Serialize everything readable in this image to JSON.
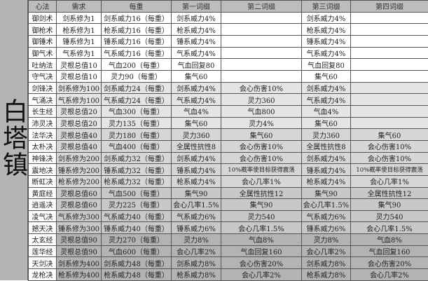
{
  "side_label": "白塔镇",
  "headers": [
    "心法",
    "需求",
    "每重",
    "第一词缀",
    "第二词缀",
    "第三词缀",
    "第四词缀"
  ],
  "rows": [
    [
      "御剑术",
      "剑系修为1",
      "剑系威力16（每重）",
      "剑系威力4%",
      "",
      "剑系威力4%",
      ""
    ],
    [
      "御枪术",
      "枪系修为1",
      "枪系威力16（每重）",
      "枪系威力4%",
      "",
      "枪系威力4%",
      ""
    ],
    [
      "御锤术",
      "锤系修为1",
      "锤系威力16（每重）",
      "锤系威力4%",
      "",
      "锤系威力4%",
      ""
    ],
    [
      "御气术",
      "气系修为1",
      "气系威力16（每重）",
      "气系威力4%",
      "",
      "气系威力4%",
      ""
    ],
    [
      "吐纳法",
      "灵根总值10",
      "气血200（每重）",
      "气血回复80",
      "",
      "气血回复80",
      ""
    ],
    [
      "守气决",
      "灵根总值10",
      "灵力90（每重）",
      "集气60",
      "",
      "集气60",
      ""
    ],
    [
      "剑锋决",
      "剑系修为100",
      "剑系威力24（每重）",
      "剑系威力4%",
      "会心伤害10%",
      "剑系威力4%",
      ""
    ],
    [
      "气涌决",
      "气系修为100",
      "气系威力24（每重）",
      "气系威力4%",
      "灵力360",
      "气系威力4%",
      ""
    ],
    [
      "长生经",
      "灵根总值20",
      "气血300（每重）",
      "气血4%",
      "气血800",
      "气血4%",
      ""
    ],
    [
      "沛灵决",
      "灵根总值20",
      "灵力135（每重）",
      "集气60",
      "灵力4%",
      "集气60",
      ""
    ],
    [
      "法华决",
      "灵根总值40",
      "灵力180（每重）",
      "灵力360",
      "集气60",
      "灵力360",
      "集气60"
    ],
    [
      "太朴决",
      "灵根总值40",
      "气血400（每重）",
      "全属性抗性8",
      "会心伤害10%",
      "全属性抗性8",
      "会心伤害10%"
    ],
    [
      "神锋决",
      "剑系修为200",
      "剑系威力32（每重）",
      "剑系威力4%",
      "会心伤害10%",
      "剑系威力4%",
      "会心伤害10%"
    ],
    [
      "震地决",
      "锤系修为200",
      "锤系威力32（每重）",
      "锤系威力4%",
      "10%概率使目标获得震荡",
      "锤系威力4%",
      "10%概率使目标获得震荡"
    ],
    [
      "断虹决",
      "枪系修为200",
      "枪系威力32（每重）",
      "枪系威力4%",
      "会心几率1%",
      "枪系威力4%",
      "会心几率1%"
    ],
    [
      "黄庭经",
      "灵根总值60",
      "气血500（每重）",
      "集气90",
      "全属性抗性12",
      "集气90",
      "全属性抗性12"
    ],
    [
      "逍遥决",
      "灵根总值60",
      "灵力225（每重）",
      "会心几率1.5%",
      "集气90",
      "会心几率1.5%",
      "集气90"
    ],
    [
      "凌气决",
      "气系修为300",
      "气系威力40（每重）",
      "气系威力6%",
      "灵力540",
      "气系威力6%",
      "灵力540"
    ],
    [
      "撼天决",
      "锤系修为300",
      "锤系威力40（每重）",
      "锤系威力6%",
      "会心几率1.5%",
      "锤系威力6%",
      "会心几率1.5%"
    ],
    [
      "太玄经",
      "灵根总值90",
      "灵力270（每重）",
      "灵力8%",
      "气血8%",
      "灵力8%",
      "气血8%"
    ],
    [
      "莲华经",
      "灵根总值90",
      "气血600（每重）",
      "会心几率2%",
      "气血回复160",
      "会心几率2%",
      "气血回复160"
    ],
    [
      "天剑决",
      "剑系修为400",
      "剑系威力48（每重）",
      "剑系威力8%",
      "会心伤害20%",
      "剑系威力8%",
      "会心伤害20%"
    ],
    [
      "龙枪决",
      "枪系修为400",
      "枪系威力48（每重）",
      "枪系威力8%",
      "会心几率2%",
      "枪系威力8%",
      "会心几率2%"
    ]
  ]
}
